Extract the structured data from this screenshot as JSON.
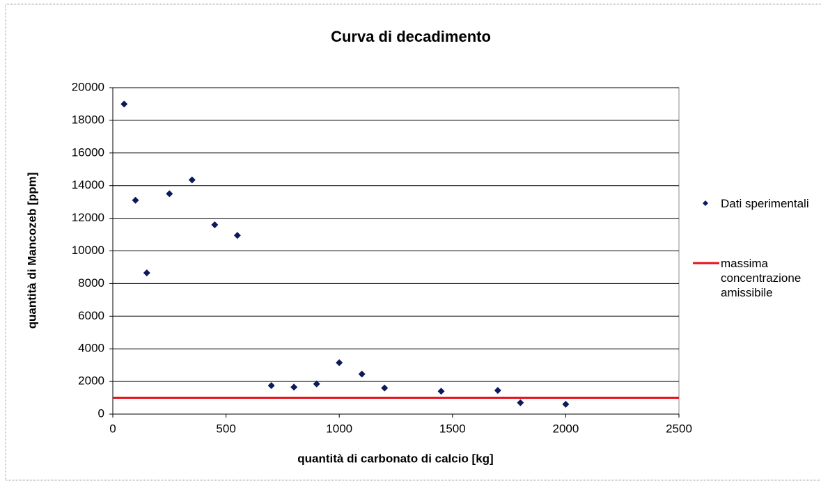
{
  "chart_data": {
    "type": "scatter",
    "title": "Curva di decadimento",
    "x_label": "quantità di carbonato di calcio [kg]",
    "y_label": "quantità di Mancozeb [ppm]",
    "xlim": [
      0,
      2500
    ],
    "xticks": [
      0,
      500,
      1000,
      1500,
      2000,
      2500
    ],
    "ylim": [
      0,
      20000
    ],
    "yticks": [
      0,
      2000,
      4000,
      6000,
      8000,
      10000,
      12000,
      14000,
      16000,
      18000,
      20000
    ],
    "grid": true,
    "legend": "right",
    "series": [
      {
        "name": "Dati sperimentali",
        "color": "#0a1a5c",
        "x": [
          50,
          100,
          150,
          250,
          350,
          450,
          550,
          700,
          800,
          900,
          1000,
          1100,
          1200,
          1450,
          1700,
          1800,
          2000
        ],
        "values": [
          19000,
          13100,
          8650,
          13500,
          14350,
          11600,
          10950,
          1750,
          1650,
          1850,
          3150,
          2450,
          1600,
          1400,
          1450,
          700,
          600
        ]
      },
      {
        "name": "massima concentrazione amissibile",
        "color": "#e8121a",
        "type": "hline",
        "y": 1000
      }
    ]
  }
}
